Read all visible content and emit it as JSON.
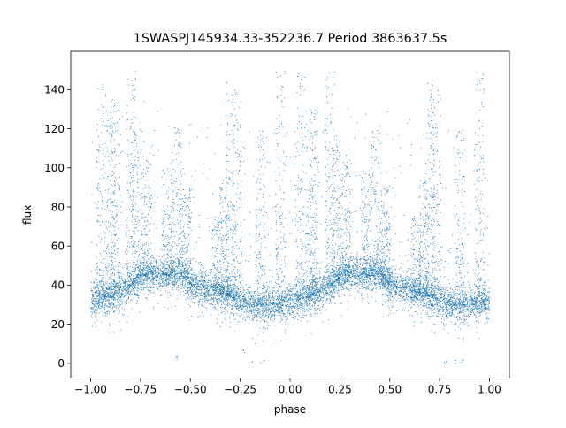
{
  "chart_data": {
    "type": "scatter",
    "title": "1SWASPJ145934.33-352236.7 Period 3863637.5s",
    "xlabel": "phase",
    "ylabel": "flux",
    "xlim": [
      -1.1,
      1.1
    ],
    "ylim": [
      -7.6,
      159.6
    ],
    "xticks": [
      -1.0,
      -0.75,
      -0.5,
      -0.25,
      0.0,
      0.25,
      0.5,
      0.75,
      1.0
    ],
    "xtick_labels": [
      "−1.00",
      "−0.75",
      "−0.50",
      "−0.25",
      "0.00",
      "0.25",
      "0.50",
      "0.75",
      "1.00"
    ],
    "yticks": [
      0,
      20,
      40,
      60,
      80,
      100,
      120,
      140
    ],
    "ytick_labels": [
      "0",
      "20",
      "40",
      "60",
      "80",
      "100",
      "120",
      "140"
    ],
    "grid": false,
    "series": [
      {
        "color": "#1f77b4",
        "marker": "dot",
        "description_of_shape": "phase-folded light curve mirrored over two cycles",
        "baseline_profile": [
          [
            -1.0,
            32
          ],
          [
            -0.9,
            34
          ],
          [
            -0.8,
            40
          ],
          [
            -0.75,
            44
          ],
          [
            -0.7,
            46
          ],
          [
            -0.6,
            45
          ],
          [
            -0.55,
            46
          ],
          [
            -0.5,
            40
          ],
          [
            -0.4,
            38
          ],
          [
            -0.3,
            34
          ],
          [
            -0.2,
            30
          ],
          [
            -0.1,
            30
          ],
          [
            0.0,
            32
          ],
          [
            0.1,
            34
          ],
          [
            0.2,
            40
          ],
          [
            0.25,
            44
          ],
          [
            0.3,
            46
          ],
          [
            0.4,
            45
          ],
          [
            0.45,
            46
          ],
          [
            0.5,
            40
          ],
          [
            0.6,
            38
          ],
          [
            0.7,
            34
          ],
          [
            0.8,
            30
          ],
          [
            0.9,
            30
          ],
          [
            1.0,
            32
          ]
        ],
        "flare_peaks": [
          [
            -0.95,
            150
          ],
          [
            -0.9,
            130
          ],
          [
            -0.88,
            135
          ],
          [
            -0.8,
            150
          ],
          [
            -0.77,
            120
          ],
          [
            -0.72,
            105
          ],
          [
            -0.62,
            100
          ],
          [
            -0.57,
            120
          ],
          [
            -0.52,
            90
          ],
          [
            -0.37,
            75
          ],
          [
            -0.33,
            95
          ],
          [
            -0.3,
            145
          ],
          [
            -0.27,
            140
          ],
          [
            -0.15,
            120
          ],
          [
            -0.05,
            150
          ],
          [
            0.05,
            150
          ],
          [
            0.1,
            130
          ],
          [
            0.12,
            135
          ],
          [
            0.2,
            150
          ],
          [
            0.23,
            120
          ],
          [
            0.28,
            105
          ],
          [
            0.38,
            100
          ],
          [
            0.43,
            120
          ],
          [
            0.48,
            90
          ],
          [
            0.63,
            75
          ],
          [
            0.67,
            95
          ],
          [
            0.7,
            145
          ],
          [
            0.73,
            140
          ],
          [
            0.85,
            120
          ],
          [
            0.95,
            150
          ]
        ],
        "isolated_low_points": [
          [
            -0.57,
            2
          ],
          [
            -0.24,
            5
          ],
          [
            -0.2,
            0
          ],
          [
            -0.14,
            0
          ],
          [
            0.78,
            0
          ],
          [
            0.82,
            0
          ],
          [
            0.86,
            0
          ]
        ]
      }
    ]
  }
}
